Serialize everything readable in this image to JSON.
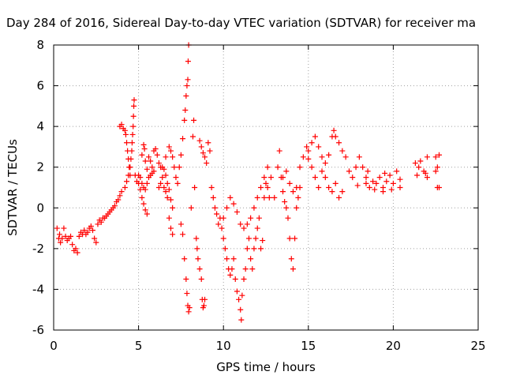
{
  "chart_data": {
    "type": "scatter",
    "title": "Day 284 of 2016, Sidereal Day-to-day VTEC variation (SDTVAR) for receiver ma",
    "xlabel": "GPS time / hours",
    "ylabel": "SDTVAR / TECUs",
    "xlim": [
      0,
      25
    ],
    "ylim": [
      -6,
      8
    ],
    "xticks": [
      0,
      5,
      10,
      15,
      20,
      25
    ],
    "yticks": [
      -6,
      -4,
      -2,
      0,
      2,
      4,
      6,
      8
    ],
    "grid": true,
    "marker": "+",
    "color": "#ff0000",
    "series": [
      {
        "points": [
          [
            0.2,
            -1.0
          ],
          [
            0.3,
            -1.5
          ],
          [
            0.35,
            -1.3
          ],
          [
            0.4,
            -1.7
          ],
          [
            0.5,
            -1.5
          ],
          [
            0.6,
            -1.0
          ],
          [
            0.7,
            -1.4
          ],
          [
            0.8,
            -1.6
          ],
          [
            0.9,
            -1.5
          ],
          [
            1.0,
            -1.4
          ],
          [
            1.1,
            -1.8
          ],
          [
            1.2,
            -2.1
          ],
          [
            1.3,
            -2.0
          ],
          [
            1.4,
            -2.2
          ],
          [
            1.5,
            -1.4
          ],
          [
            1.6,
            -1.2
          ],
          [
            1.7,
            -1.3
          ],
          [
            1.8,
            -1.1
          ],
          [
            1.9,
            -1.3
          ],
          [
            2.0,
            -1.2
          ],
          [
            2.1,
            -1.0
          ],
          [
            2.2,
            -0.9
          ],
          [
            2.3,
            -1.1
          ],
          [
            2.4,
            -1.5
          ],
          [
            2.5,
            -1.7
          ],
          [
            2.6,
            -0.8
          ],
          [
            2.7,
            -0.6
          ],
          [
            2.8,
            -0.7
          ],
          [
            2.9,
            -0.5
          ],
          [
            3.0,
            -0.5
          ],
          [
            3.1,
            -0.4
          ],
          [
            3.2,
            -0.3
          ],
          [
            3.3,
            -0.2
          ],
          [
            3.4,
            -0.1
          ],
          [
            3.5,
            0.0
          ],
          [
            3.6,
            0.1
          ],
          [
            3.7,
            0.3
          ],
          [
            3.8,
            0.4
          ],
          [
            3.9,
            0.6
          ],
          [
            4.0,
            0.8
          ],
          [
            3.9,
            4.0
          ],
          [
            4.0,
            4.1
          ],
          [
            4.1,
            3.9
          ],
          [
            4.2,
            3.8
          ],
          [
            4.25,
            3.6
          ],
          [
            4.3,
            3.2
          ],
          [
            4.35,
            2.8
          ],
          [
            4.4,
            2.4
          ],
          [
            4.45,
            2.0
          ],
          [
            4.5,
            1.6
          ],
          [
            4.2,
            1.0
          ],
          [
            4.3,
            1.3
          ],
          [
            4.4,
            1.6
          ],
          [
            4.5,
            2.0
          ],
          [
            4.55,
            2.4
          ],
          [
            4.6,
            2.8
          ],
          [
            4.62,
            3.2
          ],
          [
            4.65,
            3.6
          ],
          [
            4.68,
            4.0
          ],
          [
            4.7,
            4.5
          ],
          [
            4.72,
            5.0
          ],
          [
            4.74,
            5.3
          ],
          [
            4.8,
            1.6
          ],
          [
            4.9,
            1.3
          ],
          [
            5.0,
            1.2
          ],
          [
            5.1,
            0.9
          ],
          [
            5.2,
            0.5
          ],
          [
            5.3,
            0.2
          ],
          [
            5.4,
            -0.1
          ],
          [
            5.5,
            -0.3
          ],
          [
            5.0,
            1.6
          ],
          [
            5.1,
            1.5
          ],
          [
            5.2,
            1.2
          ],
          [
            5.3,
            1.0
          ],
          [
            5.4,
            0.9
          ],
          [
            5.5,
            1.2
          ],
          [
            5.6,
            1.5
          ],
          [
            5.7,
            1.6
          ],
          [
            5.8,
            1.7
          ],
          [
            5.9,
            1.8
          ],
          [
            5.2,
            2.6
          ],
          [
            5.3,
            3.1
          ],
          [
            5.35,
            2.9
          ],
          [
            5.4,
            2.3
          ],
          [
            5.5,
            1.9
          ],
          [
            5.6,
            2.5
          ],
          [
            5.7,
            2.3
          ],
          [
            5.8,
            2.0
          ],
          [
            5.9,
            2.8
          ],
          [
            6.0,
            2.9
          ],
          [
            6.1,
            2.6
          ],
          [
            6.2,
            2.2
          ],
          [
            6.3,
            2.0
          ],
          [
            6.4,
            2.0
          ],
          [
            6.5,
            1.9
          ],
          [
            6.6,
            1.6
          ],
          [
            6.7,
            1.2
          ],
          [
            6.8,
            0.9
          ],
          [
            6.9,
            0.4
          ],
          [
            7.0,
            0.0
          ],
          [
            6.2,
            1.0
          ],
          [
            6.3,
            1.2
          ],
          [
            6.4,
            1.5
          ],
          [
            6.5,
            1.0
          ],
          [
            6.6,
            0.8
          ],
          [
            6.7,
            0.5
          ],
          [
            6.8,
            -0.5
          ],
          [
            6.9,
            -1.0
          ],
          [
            7.0,
            -1.3
          ],
          [
            6.6,
            2.5
          ],
          [
            6.8,
            3.0
          ],
          [
            6.9,
            2.8
          ],
          [
            7.0,
            2.5
          ],
          [
            7.1,
            2.0
          ],
          [
            7.2,
            1.5
          ],
          [
            7.3,
            1.2
          ],
          [
            7.4,
            2.0
          ],
          [
            7.5,
            2.6
          ],
          [
            7.6,
            3.4
          ],
          [
            7.7,
            4.3
          ],
          [
            7.75,
            4.8
          ],
          [
            7.8,
            5.5
          ],
          [
            7.85,
            6.0
          ],
          [
            7.9,
            6.3
          ],
          [
            7.92,
            7.2
          ],
          [
            7.95,
            8.0
          ],
          [
            7.5,
            -0.8
          ],
          [
            7.6,
            -1.3
          ],
          [
            7.7,
            -2.5
          ],
          [
            7.8,
            -3.5
          ],
          [
            7.85,
            -4.2
          ],
          [
            7.9,
            -4.8
          ],
          [
            7.95,
            -5.1
          ],
          [
            8.0,
            -4.9
          ],
          [
            8.1,
            0.0
          ],
          [
            8.2,
            3.5
          ],
          [
            8.25,
            4.3
          ],
          [
            8.3,
            1.0
          ],
          [
            8.4,
            -1.5
          ],
          [
            8.45,
            -2.0
          ],
          [
            8.5,
            -2.5
          ],
          [
            8.6,
            -3.0
          ],
          [
            8.7,
            -3.5
          ],
          [
            8.75,
            -4.5
          ],
          [
            8.8,
            -4.9
          ],
          [
            8.85,
            -4.8
          ],
          [
            8.9,
            -4.5
          ],
          [
            8.6,
            3.3
          ],
          [
            8.7,
            3.0
          ],
          [
            8.8,
            2.7
          ],
          [
            8.9,
            2.5
          ],
          [
            9.0,
            2.2
          ],
          [
            9.1,
            3.2
          ],
          [
            9.2,
            2.8
          ],
          [
            9.3,
            1.0
          ],
          [
            9.4,
            0.5
          ],
          [
            9.5,
            0.0
          ],
          [
            9.6,
            -0.3
          ],
          [
            9.7,
            -0.8
          ],
          [
            9.8,
            -0.5
          ],
          [
            9.9,
            -1.0
          ],
          [
            10.0,
            -1.5
          ],
          [
            10.1,
            -2.0
          ],
          [
            10.2,
            -2.5
          ],
          [
            10.3,
            -3.0
          ],
          [
            10.4,
            -3.3
          ],
          [
            10.5,
            -3.0
          ],
          [
            10.6,
            -2.5
          ],
          [
            10.7,
            -3.5
          ],
          [
            10.8,
            -4.1
          ],
          [
            10.9,
            -4.5
          ],
          [
            11.0,
            -5.0
          ],
          [
            11.05,
            -5.5
          ],
          [
            11.1,
            -4.3
          ],
          [
            11.2,
            -3.5
          ],
          [
            11.3,
            -3.0
          ],
          [
            11.4,
            -2.0
          ],
          [
            11.5,
            -1.5
          ],
          [
            11.6,
            -2.5
          ],
          [
            11.7,
            -3.0
          ],
          [
            11.8,
            -2.0
          ],
          [
            11.9,
            -1.5
          ],
          [
            12.0,
            -1.0
          ],
          [
            12.1,
            -0.5
          ],
          [
            12.2,
            -2.0
          ],
          [
            12.3,
            -1.6
          ],
          [
            12.4,
            0.5
          ],
          [
            12.5,
            1.2
          ],
          [
            12.6,
            1.0
          ],
          [
            12.7,
            0.5
          ],
          [
            10.0,
            -0.5
          ],
          [
            10.2,
            0.0
          ],
          [
            10.4,
            0.5
          ],
          [
            10.6,
            0.2
          ],
          [
            10.8,
            -0.2
          ],
          [
            11.0,
            -0.8
          ],
          [
            11.2,
            -1.0
          ],
          [
            11.4,
            -0.8
          ],
          [
            11.6,
            -0.5
          ],
          [
            11.8,
            0.0
          ],
          [
            12.0,
            0.5
          ],
          [
            12.2,
            1.0
          ],
          [
            12.4,
            1.5
          ],
          [
            12.6,
            2.0
          ],
          [
            12.8,
            1.5
          ],
          [
            13.0,
            0.5
          ],
          [
            13.2,
            2.0
          ],
          [
            13.3,
            2.8
          ],
          [
            13.4,
            1.5
          ],
          [
            13.5,
            0.8
          ],
          [
            13.6,
            0.3
          ],
          [
            13.7,
            0.0
          ],
          [
            13.8,
            -0.5
          ],
          [
            13.9,
            -1.5
          ],
          [
            14.0,
            -2.5
          ],
          [
            14.1,
            -3.0
          ],
          [
            14.2,
            -1.5
          ],
          [
            14.3,
            0.0
          ],
          [
            14.4,
            0.5
          ],
          [
            14.5,
            1.0
          ],
          [
            13.5,
            1.5
          ],
          [
            13.7,
            1.8
          ],
          [
            13.9,
            1.2
          ],
          [
            14.1,
            0.8
          ],
          [
            14.3,
            1.0
          ],
          [
            14.5,
            2.0
          ],
          [
            14.7,
            2.5
          ],
          [
            14.9,
            3.0
          ],
          [
            15.0,
            2.4
          ],
          [
            15.2,
            2.0
          ],
          [
            15.4,
            1.5
          ],
          [
            15.6,
            1.0
          ],
          [
            15.8,
            1.8
          ],
          [
            16.0,
            2.2
          ],
          [
            16.2,
            2.6
          ],
          [
            16.4,
            3.5
          ],
          [
            16.5,
            3.8
          ],
          [
            16.6,
            3.5
          ],
          [
            16.8,
            3.2
          ],
          [
            17.0,
            2.8
          ],
          [
            15.0,
            2.8
          ],
          [
            15.2,
            3.2
          ],
          [
            15.4,
            3.5
          ],
          [
            15.6,
            3.0
          ],
          [
            15.8,
            2.5
          ],
          [
            16.0,
            1.5
          ],
          [
            16.2,
            1.0
          ],
          [
            16.4,
            0.8
          ],
          [
            16.6,
            1.2
          ],
          [
            16.8,
            0.5
          ],
          [
            17.0,
            0.8
          ],
          [
            17.2,
            2.5
          ],
          [
            17.4,
            1.8
          ],
          [
            17.6,
            1.5
          ],
          [
            17.8,
            2.0
          ],
          [
            18.0,
            2.5
          ],
          [
            18.2,
            2.0
          ],
          [
            18.4,
            1.5
          ],
          [
            18.6,
            1.0
          ],
          [
            18.8,
            1.3
          ],
          [
            19.0,
            1.2
          ],
          [
            19.2,
            1.5
          ],
          [
            19.4,
            1.0
          ],
          [
            19.6,
            1.3
          ],
          [
            19.8,
            1.6
          ],
          [
            20.0,
            1.2
          ],
          [
            20.2,
            1.8
          ],
          [
            20.4,
            1.4
          ],
          [
            18.5,
            1.8
          ],
          [
            19.5,
            1.7
          ],
          [
            21.3,
            2.2
          ],
          [
            21.5,
            2.0
          ],
          [
            21.6,
            2.3
          ],
          [
            21.8,
            1.8
          ],
          [
            22.0,
            2.5
          ],
          [
            22.0,
            1.5
          ],
          [
            22.5,
            2.5
          ],
          [
            22.5,
            1.8
          ],
          [
            22.6,
            1.0
          ],
          [
            22.7,
            2.6
          ],
          [
            22.6,
            2.0
          ],
          [
            22.7,
            1.0
          ],
          [
            21.4,
            1.6
          ],
          [
            21.9,
            1.7
          ],
          [
            20.4,
            1.0
          ],
          [
            19.9,
            0.9
          ],
          [
            19.4,
            0.8
          ],
          [
            18.9,
            0.9
          ],
          [
            18.4,
            1.2
          ],
          [
            17.9,
            1.1
          ]
        ]
      }
    ]
  }
}
